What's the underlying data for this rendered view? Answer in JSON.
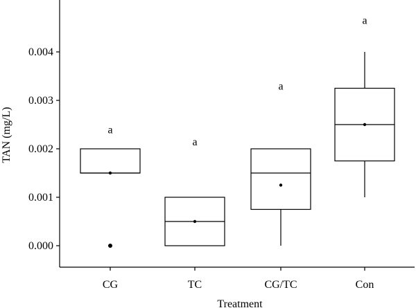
{
  "chart_data": {
    "type": "box",
    "title": "",
    "xlabel": "Treatment",
    "ylabel": "TAN (mg/L)",
    "ylim": [
      -0.00045,
      0.005
    ],
    "yticks": [
      0.0,
      0.001,
      0.002,
      0.003,
      0.004
    ],
    "ytick_labels": [
      "0.000",
      "0.001",
      "0.002",
      "0.003",
      "0.004"
    ],
    "categories": [
      "CG",
      "TC",
      "CG/TC",
      "Con"
    ],
    "boxes": [
      {
        "category": "CG",
        "q1": 0.0015,
        "median": 0.0015,
        "q3": 0.002,
        "whisker_low": null,
        "whisker_high": null,
        "mean": 0.0015,
        "outliers": [
          0.0
        ],
        "letter": "a",
        "letter_y": 0.00232
      },
      {
        "category": "TC",
        "q1": 0.0,
        "median": 0.0005,
        "q3": 0.001,
        "whisker_low": null,
        "whisker_high": null,
        "mean": 0.0005,
        "outliers": [],
        "letter": "a",
        "letter_y": 0.00207
      },
      {
        "category": "CG/TC",
        "q1": 0.00075,
        "median": 0.0015,
        "q3": 0.002,
        "whisker_low": 0.0,
        "whisker_high": null,
        "mean": 0.00125,
        "outliers": [],
        "letter": "a",
        "letter_y": 0.00322
      },
      {
        "category": "Con",
        "q1": 0.00175,
        "median": 0.0025,
        "q3": 0.00325,
        "whisker_low": 0.001,
        "whisker_high": 0.004,
        "mean": 0.0025,
        "outliers": [],
        "letter": "a",
        "letter_y": 0.00458
      }
    ]
  }
}
